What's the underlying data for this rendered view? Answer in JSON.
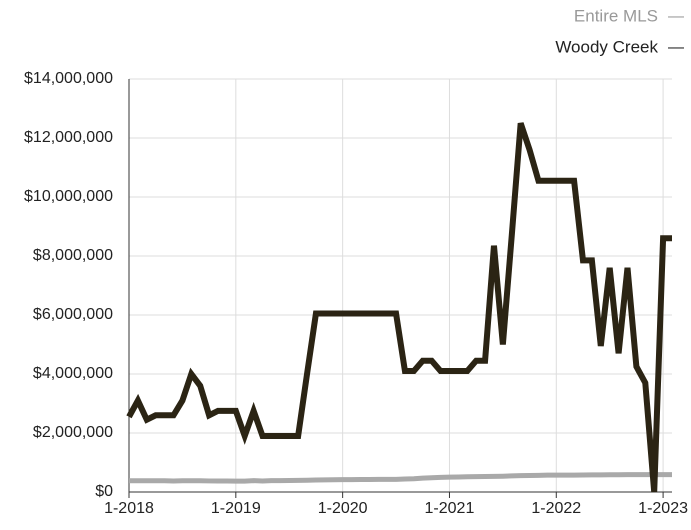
{
  "chart_data": {
    "type": "line",
    "x": [
      0,
      1,
      2,
      3,
      4,
      5,
      6,
      7,
      8,
      9,
      10,
      11,
      12,
      13,
      14,
      15,
      16,
      17,
      18,
      19,
      20,
      21,
      22,
      23,
      24,
      25,
      26,
      27,
      28,
      29,
      30,
      31,
      32,
      33,
      34,
      35,
      36,
      37,
      38,
      39,
      40,
      41,
      42,
      43,
      44,
      45,
      46,
      47,
      48,
      49,
      50,
      51,
      52,
      53,
      54,
      55,
      56,
      57,
      58,
      59,
      60,
      61
    ],
    "series": [
      {
        "name": "Entire MLS",
        "color": "#a9a9a9",
        "values": [
          380000,
          380000,
          380000,
          380000,
          380000,
          375000,
          380000,
          380000,
          380000,
          375000,
          375000,
          375000,
          370000,
          370000,
          385000,
          375000,
          385000,
          385000,
          390000,
          395000,
          400000,
          405000,
          410000,
          415000,
          420000,
          420000,
          425000,
          425000,
          430000,
          430000,
          430000,
          440000,
          450000,
          470000,
          485000,
          495000,
          505000,
          510000,
          515000,
          520000,
          525000,
          530000,
          535000,
          545000,
          555000,
          560000,
          565000,
          570000,
          570000,
          570000,
          570000,
          575000,
          580000,
          580000,
          585000,
          585000,
          590000,
          590000,
          590000,
          590000,
          590000,
          590000
        ]
      },
      {
        "name": "Woody Creek",
        "color": "#2b2414",
        "values": [
          2550000,
          3100000,
          2450000,
          2600000,
          2600000,
          2600000,
          3100000,
          4000000,
          3600000,
          2600000,
          2750000,
          2750000,
          2750000,
          1900000,
          2750000,
          1900000,
          1900000,
          1900000,
          1900000,
          1900000,
          4000000,
          6050000,
          6050000,
          6050000,
          6050000,
          6050000,
          6050000,
          6050000,
          6050000,
          6050000,
          6050000,
          4100000,
          4100000,
          4450000,
          4450000,
          4100000,
          4100000,
          4100000,
          4100000,
          4450000,
          4450000,
          8350000,
          5000000,
          8700000,
          12500000,
          11600000,
          10550000,
          10550000,
          10550000,
          10550000,
          10550000,
          7850000,
          7850000,
          4950000,
          7600000,
          4700000,
          7600000,
          4250000,
          3700000,
          0,
          8600000,
          8600000
        ]
      }
    ],
    "xlim": [
      0,
      61
    ],
    "xticks": [
      {
        "value": 0,
        "label": "1-2018"
      },
      {
        "value": 12,
        "label": "1-2019"
      },
      {
        "value": 24,
        "label": "1-2020"
      },
      {
        "value": 36,
        "label": "1-2021"
      },
      {
        "value": 48,
        "label": "1-2022"
      },
      {
        "value": 60,
        "label": "1-2023"
      }
    ],
    "ylim": [
      0,
      14000000
    ],
    "yticks": [
      {
        "value": 0,
        "label": "$0"
      },
      {
        "value": 2000000,
        "label": "$2,000,000"
      },
      {
        "value": 4000000,
        "label": "$4,000,000"
      },
      {
        "value": 6000000,
        "label": "$6,000,000"
      },
      {
        "value": 8000000,
        "label": "$8,000,000"
      },
      {
        "value": 10000000,
        "label": "$10,000,000"
      },
      {
        "value": 12000000,
        "label": "$12,000,000"
      },
      {
        "value": 14000000,
        "label": "$14,000,000"
      }
    ],
    "grid": true,
    "legend": "top-right",
    "legend_marker": "—"
  }
}
